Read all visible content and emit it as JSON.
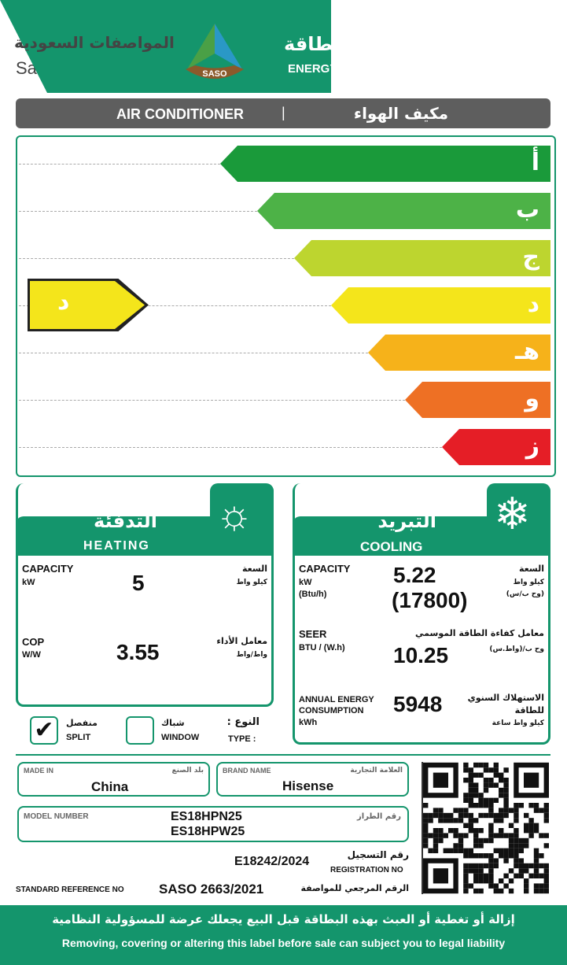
{
  "header": {
    "org_ar": "المواصفات السعودية",
    "org_en": "Saudi Standards",
    "logo_text": "SASO",
    "title_ar": "بطاقة كفاءة الطاقة",
    "title_en": "ENERGY EFFICIENCY LABEL",
    "icon": "air-conditioner-icon"
  },
  "product": {
    "en": "AIR CONDITIONER",
    "sep": "|",
    "ar": "مكيف الهواء"
  },
  "rating": {
    "classes": [
      {
        "label": "أ",
        "color": "#1a9a3a"
      },
      {
        "label": "ب",
        "color": "#4db247"
      },
      {
        "label": "ج",
        "color": "#bdd52f"
      },
      {
        "label": "د",
        "color": "#f4e51b"
      },
      {
        "label": "هـ",
        "color": "#f6b21a"
      },
      {
        "label": "و",
        "color": "#ee7024"
      },
      {
        "label": "ز",
        "color": "#e51e26"
      }
    ],
    "selected": "د",
    "selected_color": "#f4e51b"
  },
  "heating": {
    "title_ar": "التدفئة",
    "title_en": "HEATING",
    "icon": "sun-icon",
    "capacity": {
      "label": "CAPACITY",
      "unit": "kW",
      "label_ar": "السعة",
      "unit_ar": "كيلو واط",
      "value": "5"
    },
    "cop": {
      "label": "COP",
      "unit": "W/W",
      "label_ar": "معامل الأداء",
      "unit_ar": "واط/واط",
      "value": "3.55"
    }
  },
  "type": {
    "split_ar": "منفصل",
    "split_en": "SPLIT",
    "split_checked": true,
    "window_ar": "شباك",
    "window_en": "WINDOW",
    "window_checked": false,
    "label_ar": "النوع :",
    "label_en": "TYPE :"
  },
  "cooling": {
    "title_ar": "التبريد",
    "title_en": "COOLING",
    "icon": "snowflake-icon",
    "capacity": {
      "label": "CAPACITY",
      "unit": "kW",
      "unit2": "(Btu/h)",
      "label_ar": "السعة",
      "unit_ar": "كيلو واط",
      "unit2_ar": "(وح ب/س)",
      "value": "5.22",
      "value2": "(17800)"
    },
    "seer": {
      "label": "SEER",
      "unit": "BTU / (W.h)",
      "label_ar": "معامل كفاءة الطاقة الموسمي",
      "unit_ar": "وح ب/(واط.س)",
      "value": "10.25"
    },
    "annual": {
      "label1": "ANNUAL ENERGY",
      "label2": "CONSUMPTION",
      "unit": "kWh",
      "label_ar1": "الاستهلاك السنوي",
      "label_ar2": "للطاقة",
      "unit_ar": "كيلو واط ساعة",
      "value": "5948"
    }
  },
  "info": {
    "made_in_label": "MADE IN",
    "made_in_ar": "بلد الصنع",
    "made_in": "China",
    "brand_label": "BRAND NAME",
    "brand_ar": "العلامة التجارية",
    "brand": "Hisense",
    "model_label": "MODEL NUMBER",
    "model_ar": "رقم الطراز",
    "models": [
      "ES18HPN25",
      "ES18HPW25"
    ],
    "reg_ar": "رقم التسجيل",
    "reg_en": "REGISTRATION NO",
    "reg": "E18242/2024",
    "std_label": "STANDARD REFERENCE NO",
    "std": "SASO 2663/2021",
    "std_ar": "الرقم المرجعي للمواصفة"
  },
  "footer": {
    "ar": "إزالة أو تغطية أو العبث بهذه البطاقة قبل البيع يجعلك عرضة للمسؤولية النظامية",
    "en": "Removing, covering or altering this label before sale can subject you to legal liability"
  }
}
